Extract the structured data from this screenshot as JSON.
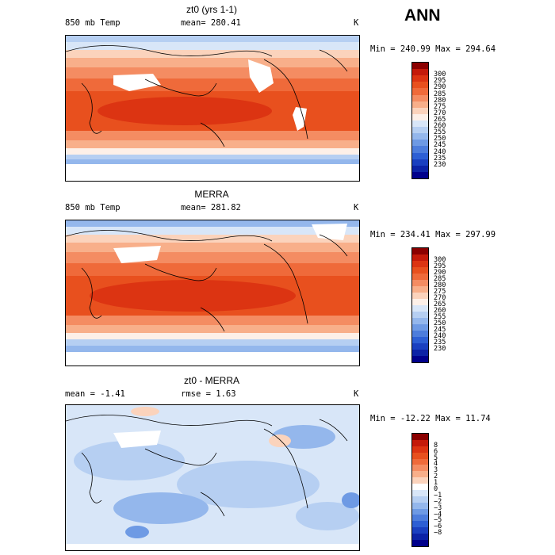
{
  "season": "ANN",
  "panels": [
    {
      "title": "zt0 (yrs 1-1)",
      "left_label": "850 mb Temp",
      "center_label": "mean=  280.41",
      "units": "K",
      "range_label": "Min = 240.99 Max = 294.64",
      "colorbar": {
        "colors": [
          "#8b0000",
          "#c41a0a",
          "#dc3412",
          "#e8501e",
          "#ef6a3a",
          "#f48c62",
          "#f8af8a",
          "#fbd3bc",
          "#fdf0e8",
          "#d8e6f8",
          "#b6cff2",
          "#94b7ec",
          "#6e9ae4",
          "#4d7ddc",
          "#2d5fd4",
          "#1a40c0",
          "#0c23a6",
          "#00008b"
        ],
        "labels": [
          "300",
          "295",
          "290",
          "285",
          "280",
          "275",
          "270",
          "265",
          "260",
          "255",
          "250",
          "245",
          "240",
          "235",
          "230"
        ]
      }
    },
    {
      "title": "MERRA",
      "left_label": "850 mb Temp",
      "center_label": "mean=  281.82",
      "units": "K",
      "range_label": "Min = 234.41 Max = 297.99",
      "colorbar": {
        "colors": [
          "#8b0000",
          "#c41a0a",
          "#dc3412",
          "#e8501e",
          "#ef6a3a",
          "#f48c62",
          "#f8af8a",
          "#fbd3bc",
          "#fdf0e8",
          "#d8e6f8",
          "#b6cff2",
          "#94b7ec",
          "#6e9ae4",
          "#4d7ddc",
          "#2d5fd4",
          "#1a40c0",
          "#0c23a6",
          "#00008b"
        ],
        "labels": [
          "300",
          "295",
          "290",
          "285",
          "280",
          "275",
          "270",
          "265",
          "260",
          "255",
          "250",
          "245",
          "240",
          "235",
          "230"
        ]
      }
    },
    {
      "title": "zt0 - MERRA",
      "left_label": "mean =   -1.41",
      "center_label": "rmse =    1.63",
      "units": "K",
      "range_label": "Min = -12.22 Max =  11.74",
      "colorbar": {
        "colors": [
          "#8b0000",
          "#c41a0a",
          "#dc3412",
          "#e8501e",
          "#ef6a3a",
          "#f48c62",
          "#f8af8a",
          "#fbd3bc",
          "#ffffff",
          "#d8e6f8",
          "#b6cff2",
          "#94b7ec",
          "#6e9ae4",
          "#4d7ddc",
          "#2d5fd4",
          "#1a40c0",
          "#0c23a6",
          "#00008b"
        ],
        "labels": [
          "8",
          "6",
          "5",
          "4",
          "3",
          "2",
          "1",
          "0",
          "−1",
          "−2",
          "−3",
          "−4",
          "−5",
          "−6",
          "−8"
        ]
      }
    }
  ]
}
